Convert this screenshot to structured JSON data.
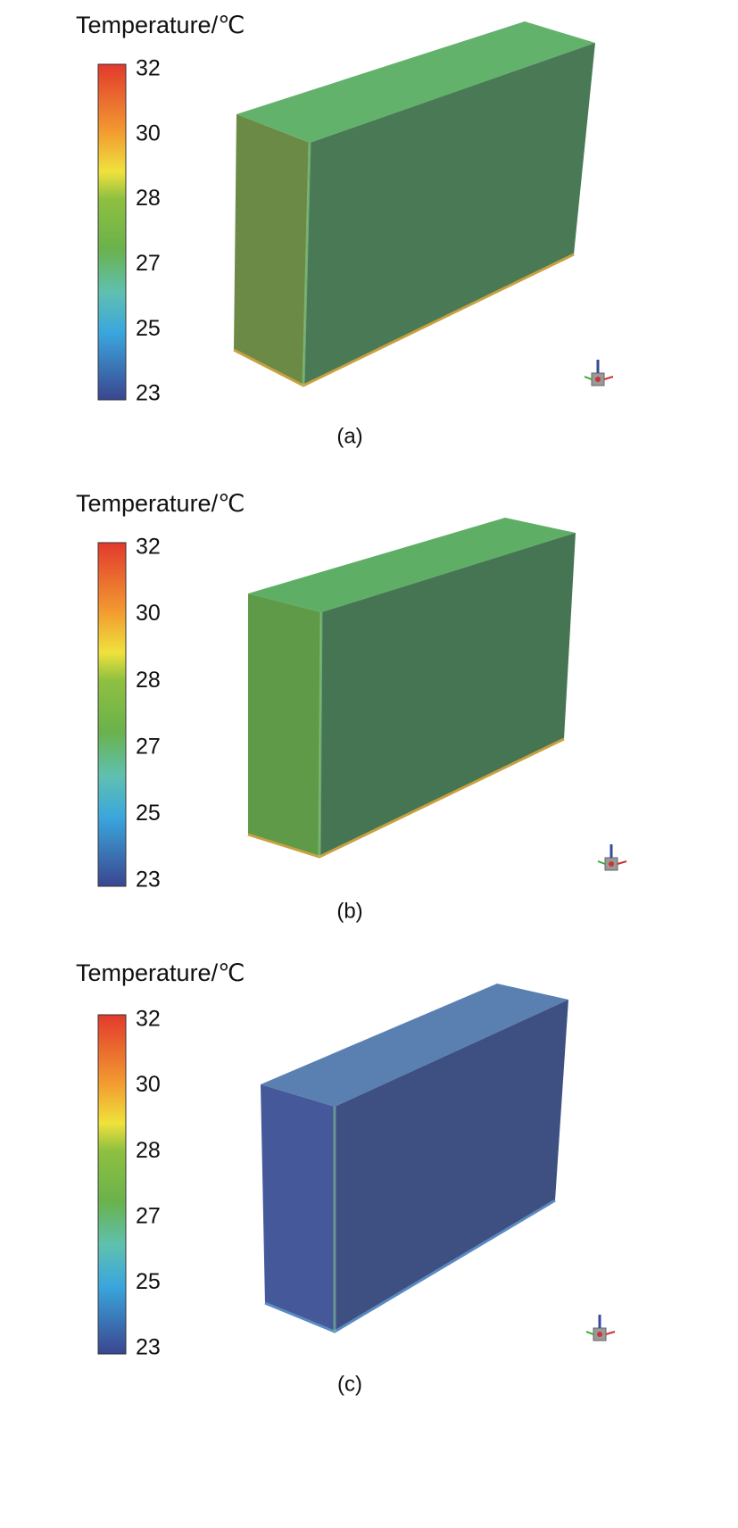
{
  "panels": [
    {
      "legend_title": "Temperature/℃",
      "colorbar_labels": [
        32,
        30,
        28,
        27,
        25,
        23
      ],
      "caption": "(a)"
    },
    {
      "legend_title": "Temperature/℃",
      "colorbar_labels": [
        32,
        30,
        28,
        27,
        25,
        23
      ],
      "caption": "(b)"
    },
    {
      "legend_title": "Temperature/℃",
      "colorbar_labels": [
        32,
        30,
        28,
        27,
        25,
        23
      ],
      "caption": "(c)"
    }
  ]
}
